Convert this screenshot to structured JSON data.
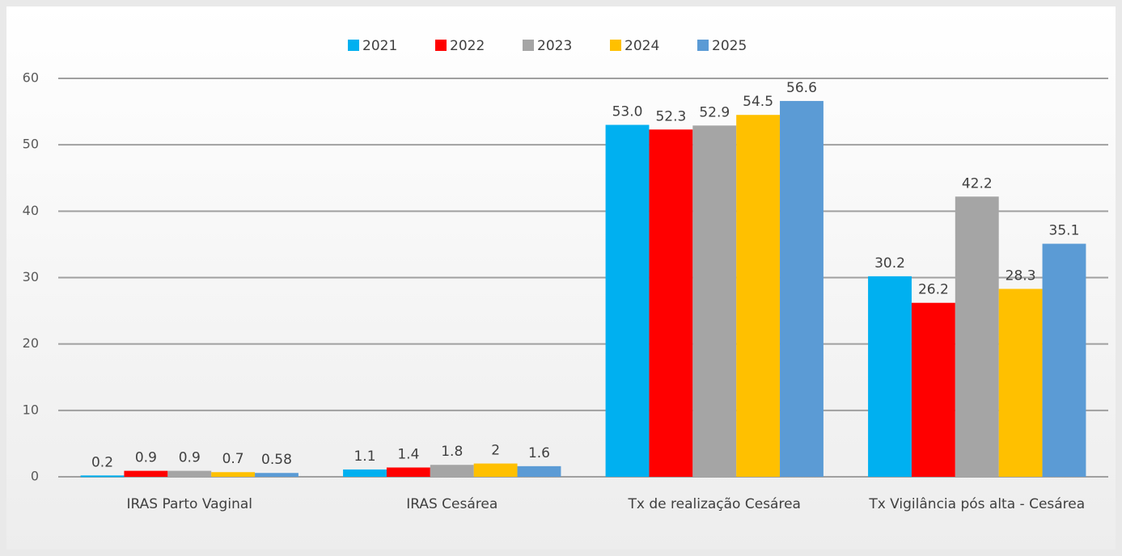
{
  "chart_data": {
    "type": "bar",
    "categories": [
      "IRAS Parto Vaginal",
      "IRAS Cesárea",
      "Tx de realização Cesárea",
      "Tx Vigilância pós alta - Cesárea"
    ],
    "series": [
      {
        "name": "2021",
        "color": "#00b0f0",
        "values": [
          0.2,
          1.1,
          53.0,
          30.2
        ],
        "value_labels": [
          "0.2",
          "1.1",
          "53.0",
          "30.2"
        ]
      },
      {
        "name": "2022",
        "color": "#ff0000",
        "values": [
          0.9,
          1.4,
          52.3,
          26.2
        ],
        "value_labels": [
          "0.9",
          "1.4",
          "52.3",
          "26.2"
        ]
      },
      {
        "name": "2023",
        "color": "#a5a5a5",
        "values": [
          0.9,
          1.8,
          52.9,
          42.2
        ],
        "value_labels": [
          "0.9",
          "1.8",
          "52.9",
          "42.2"
        ]
      },
      {
        "name": "2024",
        "color": "#ffc000",
        "values": [
          0.7,
          2,
          54.5,
          28.3
        ],
        "value_labels": [
          "0.7",
          "2",
          "54.5",
          "28.3"
        ]
      },
      {
        "name": "2025",
        "color": "#5b9bd5",
        "values": [
          0.58,
          1.6,
          56.6,
          35.1
        ],
        "value_labels": [
          "0.58",
          "1.6",
          "56.6",
          "35.1"
        ]
      }
    ],
    "ylim": [
      0,
      60
    ],
    "yticks": [
      0,
      10,
      20,
      30,
      40,
      50,
      60
    ],
    "grid": true,
    "legend": "top"
  }
}
